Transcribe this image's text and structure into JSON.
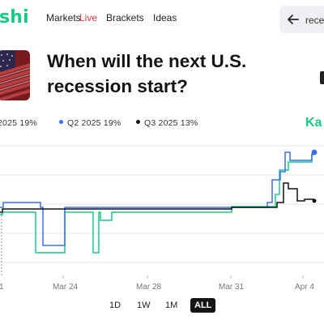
{
  "logo": {
    "text": "shi"
  },
  "nav": {
    "links": [
      {
        "label": "Markets",
        "active": false
      },
      {
        "label": "Live",
        "active": true
      },
      {
        "label": "Brackets",
        "active": false
      },
      {
        "label": "Ideas",
        "active": false
      }
    ]
  },
  "search": {
    "text": "rece"
  },
  "market": {
    "title": "When will the next U.S. recession start?",
    "brand_watermark": "Ka"
  },
  "chart_data": {
    "type": "line",
    "title": "",
    "x_tick_labels": [
      "1",
      "Mar 24",
      "Mar 28",
      "Mar 31",
      "Apr 4"
    ],
    "series": [
      {
        "name": "2025",
        "label": "2025 19%",
        "color": "#19c985",
        "current_pct": 19
      },
      {
        "name": "Q2 2025",
        "label": "Q2 2025 19%",
        "color": "#3b6ff0",
        "current_pct": 19
      },
      {
        "name": "Q3 2025",
        "label": "Q3 2025 13%",
        "color": "#111111",
        "current_pct": 13
      }
    ]
  },
  "range": {
    "buttons": [
      {
        "label": "1D",
        "active": false
      },
      {
        "label": "1W",
        "active": false
      },
      {
        "label": "1M",
        "active": false
      },
      {
        "label": "ALL",
        "active": true
      }
    ]
  }
}
